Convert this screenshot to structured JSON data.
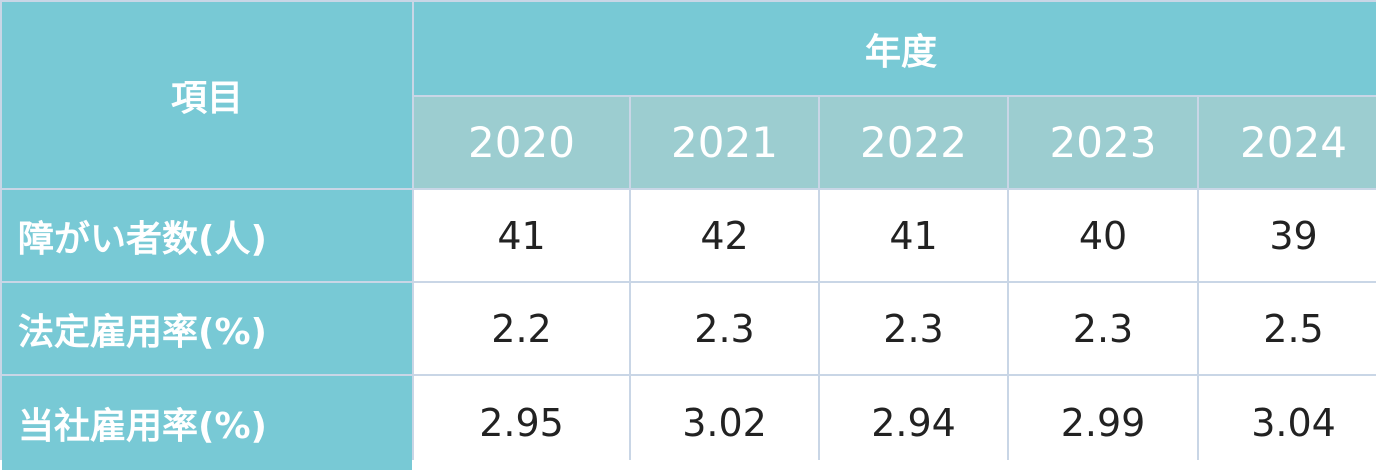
{
  "table": {
    "item_header": "項目",
    "year_header": "年度",
    "years": [
      "2020",
      "2021",
      "2022",
      "2023",
      "2024"
    ],
    "rows": [
      {
        "label": "障がい者数(人)",
        "values": [
          "41",
          "42",
          "41",
          "40",
          "39"
        ]
      },
      {
        "label": "法定雇用率(%)",
        "values": [
          "2.2",
          "2.3",
          "2.3",
          "2.3",
          "2.5"
        ]
      },
      {
        "label": "当社雇用率(%)",
        "values": [
          "2.95",
          "3.02",
          "2.94",
          "2.99",
          "3.04"
        ]
      }
    ]
  },
  "colors": {
    "header_teal": "#78c9d5",
    "year_header_teal": "#9ccdd0",
    "grid_line": "#c9d6e6",
    "cell_bg": "#ffffff",
    "value_text": "#222222"
  }
}
